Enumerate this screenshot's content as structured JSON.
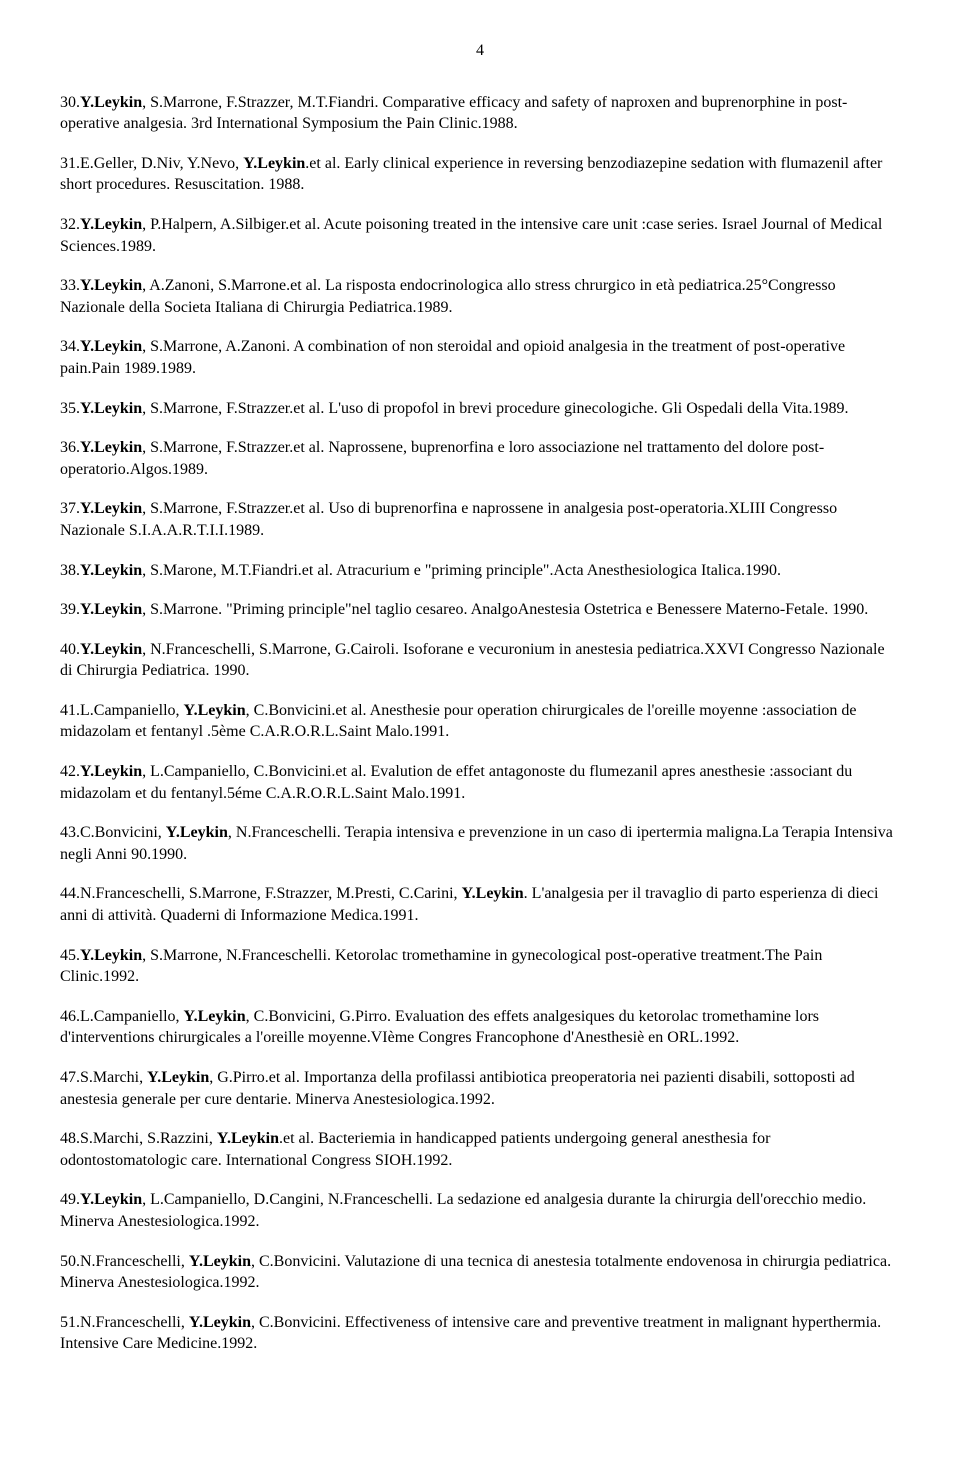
{
  "page_number": "4",
  "references": [
    {
      "num": "30",
      "authors_pre": "",
      "bold": "Y.Leykin",
      "rest": ", S.Marrone, F.Strazzer, M.T.Fiandri. Comparative efficacy and safety of naproxen and buprenorphine in post-operative analgesia. 3rd International Symposium the Pain Clinic.1988."
    },
    {
      "num": "31",
      "authors_pre": "E.Geller, D.Niv, Y.Nevo, ",
      "bold": "Y.Leykin",
      "rest": ".et al. Early clinical experience in reversing benzodiazepine sedation with flumazenil after short procedures. Resuscitation. 1988."
    },
    {
      "num": "32",
      "authors_pre": "",
      "bold": "Y.Leykin",
      "rest": ", P.Halpern, A.Silbiger.et al. Acute poisoning treated in the intensive care unit :case series. Israel Journal of Medical Sciences.1989."
    },
    {
      "num": "33",
      "authors_pre": "",
      "bold": "Y.Leykin",
      "rest": ", A.Zanoni, S.Marrone.et al. La risposta endocrinologica allo stress chrurgico in età pediatrica.25°Congresso Nazionale della Societa Italiana di Chirurgia Pediatrica.1989."
    },
    {
      "num": "34",
      "authors_pre": "",
      "bold": "Y.Leykin",
      "rest": ", S.Marrone, A.Zanoni. A combination of non steroidal and opioid analgesia in the treatment of post-operative pain.Pain 1989.1989."
    },
    {
      "num": "35",
      "authors_pre": "",
      "bold": "Y.Leykin",
      "rest": ", S.Marrone, F.Strazzer.et al. L'uso di propofol in brevi procedure ginecologiche. Gli Ospedali della Vita.1989."
    },
    {
      "num": "36",
      "authors_pre": "",
      "bold": "Y.Leykin",
      "rest": ", S.Marrone, F.Strazzer.et al. Naprossene, buprenorfina e loro associazione nel trattamento del dolore post-operatorio.Algos.1989."
    },
    {
      "num": "37",
      "authors_pre": "",
      "bold": "Y.Leykin",
      "rest": ", S.Marrone, F.Strazzer.et al. Uso di buprenorfina e naprossene in analgesia post-operatoria.XLIII Congresso Nazionale S.I.A.A.R.T.I.I.1989."
    },
    {
      "num": "38",
      "authors_pre": "",
      "bold": "Y.Leykin",
      "rest": ", S.Marone, M.T.Fiandri.et al. Atracurium e \"priming principle\".Acta Anesthesiologica Italica.1990."
    },
    {
      "num": "39",
      "authors_pre": "",
      "bold": "Y.Leykin",
      "rest": ", S.Marrone. \"Priming principle\"nel taglio cesareo. AnalgoAnestesia Ostetrica e Benessere Materno-Fetale. 1990."
    },
    {
      "num": "40",
      "authors_pre": "",
      "bold": "Y.Leykin",
      "rest": ", N.Franceschelli, S.Marrone, G.Cairoli. Isoforane e vecuronium in anestesia pediatrica.XXVI Congresso Nazionale di Chirurgia Pediatrica. 1990."
    },
    {
      "num": "41",
      "authors_pre": "L.Campaniello, ",
      "bold": "Y.Leykin",
      "rest": ", C.Bonvicini.et al. Anesthesie pour operation chirurgicales de l'oreille moyenne :association de midazolam et fentanyl .5ème C.A.R.O.R.L.Saint Malo.1991."
    },
    {
      "num": "42",
      "authors_pre": "",
      "bold": "Y.Leykin",
      "rest": ", L.Campaniello, C.Bonvicini.et al. Evalution de effet antagonoste du flumezanil apres anesthesie :associant du midazolam et du fentanyl.5éme C.A.R.O.R.L.Saint Malo.1991."
    },
    {
      "num": "43",
      "authors_pre": "C.Bonvicini, ",
      "bold": "Y.Leykin",
      "rest": ", N.Franceschelli. Terapia intensiva e prevenzione in un caso di ipertermia maligna.La Terapia Intensiva negli Anni 90.1990."
    },
    {
      "num": "44",
      "authors_pre": "N.Franceschelli, S.Marrone, F.Strazzer, M.Presti, C.Carini, ",
      "bold": "Y.Leykin",
      "rest": ". L'analgesia per il travaglio di parto esperienza di dieci anni di attività. Quaderni di Informazione Medica.1991."
    },
    {
      "num": "45",
      "authors_pre": "",
      "bold": "Y.Leykin",
      "rest": ", S.Marrone, N.Franceschelli. Ketorolac tromethamine in gynecological post-operative treatment.The Pain Clinic.1992."
    },
    {
      "num": "46",
      "authors_pre": "L.Campaniello, ",
      "bold": "Y.Leykin",
      "rest": ", C.Bonvicini, G.Pirro. Evaluation des effets analgesiques du ketorolac tromethamine lors d'interventions chirurgicales a l'oreille moyenne.VIème Congres Francophone d'Anesthesiè en ORL.1992."
    },
    {
      "num": "47",
      "authors_pre": "S.Marchi, ",
      "bold": "Y.Leykin",
      "rest": ", G.Pirro.et al. Importanza della profilassi antibiotica preoperatoria nei pazienti disabili, sottoposti ad anestesia generale per cure dentarie. Minerva Anestesiologica.1992."
    },
    {
      "num": "48",
      "authors_pre": "S.Marchi, S.Razzini, ",
      "bold": "Y.Leykin",
      "rest": ".et al. Bacteriemia in handicapped patients undergoing general anesthesia for odontostomatologic care. International Congress SIOH.1992."
    },
    {
      "num": "49",
      "authors_pre": "",
      "bold": "Y.Leykin",
      "rest": ", L.Campaniello, D.Cangini, N.Franceschelli. La sedazione ed analgesia durante la chirurgia dell'orecchio medio. Minerva Anestesiologica.1992."
    },
    {
      "num": "50",
      "authors_pre": "N.Franceschelli, ",
      "bold": "Y.Leykin",
      "rest": ", C.Bonvicini. Valutazione di una tecnica di anestesia totalmente endovenosa in chirurgia pediatrica. Minerva Anestesiologica.1992."
    },
    {
      "num": "51",
      "authors_pre": "N.Franceschelli, ",
      "bold": "Y.Leykin",
      "rest": ", C.Bonvicini. Effectiveness of intensive care and preventive treatment in malignant hyperthermia. Intensive Care Medicine.1992."
    }
  ]
}
